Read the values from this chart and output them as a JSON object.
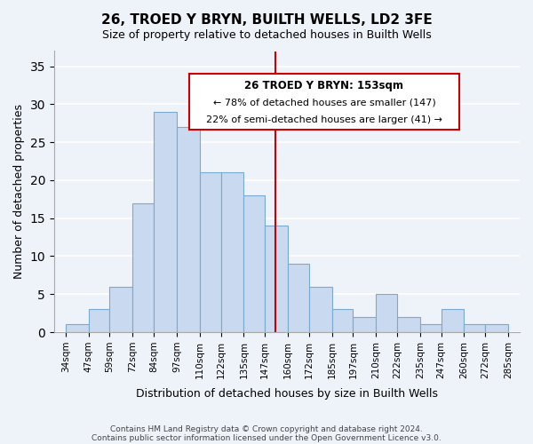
{
  "title": "26, TROED Y BRYN, BUILTH WELLS, LD2 3FE",
  "subtitle": "Size of property relative to detached houses in Builth Wells",
  "xlabel": "Distribution of detached houses by size in Builth Wells",
  "ylabel": "Number of detached properties",
  "footer_lines": [
    "Contains HM Land Registry data © Crown copyright and database right 2024.",
    "Contains public sector information licensed under the Open Government Licence v3.0."
  ],
  "bin_edges": [
    34,
    47,
    59,
    72,
    84,
    97,
    110,
    122,
    135,
    147,
    160,
    172,
    185,
    197,
    210,
    222,
    235,
    247,
    260,
    272,
    285
  ],
  "bin_labels": [
    "34sqm",
    "47sqm",
    "59sqm",
    "72sqm",
    "84sqm",
    "97sqm",
    "110sqm",
    "122sqm",
    "135sqm",
    "147sqm",
    "160sqm",
    "172sqm",
    "185sqm",
    "197sqm",
    "210sqm",
    "222sqm",
    "235sqm",
    "247sqm",
    "260sqm",
    "272sqm",
    "285sqm"
  ],
  "bar_heights": [
    1,
    3,
    6,
    17,
    29,
    27,
    21,
    21,
    18,
    14,
    9,
    6,
    3,
    2,
    5,
    2,
    1,
    3,
    1,
    1
  ],
  "bar_color": "#c8d9f0",
  "bar_edge_color": "#7aaad0",
  "vline_x": 153,
  "vline_color": "#cc0000",
  "ylim": [
    0,
    37
  ],
  "yticks": [
    0,
    5,
    10,
    15,
    20,
    25,
    30,
    35
  ],
  "annotation_title": "26 TROED Y BRYN: 153sqm",
  "annotation_line1": "← 78% of detached houses are smaller (147)",
  "annotation_line2": "22% of semi-detached houses are larger (41) →",
  "annotation_box_edge": "#cc0000",
  "background_color": "#eef2f9"
}
